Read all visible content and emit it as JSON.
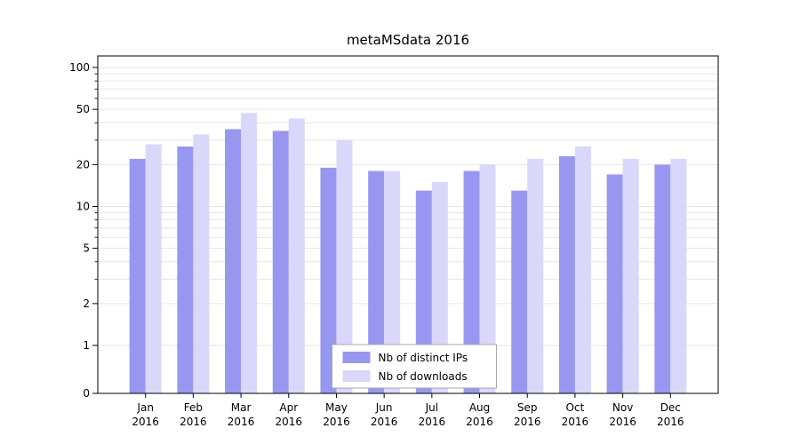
{
  "title": "metaMSdata 2016",
  "chart_data": {
    "type": "bar",
    "title": "metaMSdata 2016",
    "categories": [
      "Jan 2016",
      "Feb 2016",
      "Mar 2016",
      "Apr 2016",
      "May 2016",
      "Jun 2016",
      "Jul 2016",
      "Aug 2016",
      "Sep 2016",
      "Oct 2016",
      "Nov 2016",
      "Dec 2016"
    ],
    "series": [
      {
        "name": "Nb of distinct IPs",
        "color": "#9897f0",
        "values": [
          22,
          27,
          36,
          35,
          19,
          18,
          13,
          18,
          13,
          23,
          17,
          20
        ]
      },
      {
        "name": "Nb of downloads",
        "color": "#d9d8fa",
        "values": [
          28,
          33,
          47,
          43,
          30,
          18,
          15,
          20,
          22,
          27,
          22,
          22
        ]
      }
    ],
    "yscale": "symlog",
    "yticks": [
      0,
      1,
      2,
      5,
      10,
      20,
      50,
      100
    ],
    "ylim": [
      0,
      120
    ],
    "grid": true,
    "gridcolor": "#e6e6e6",
    "axis_color": "#000000",
    "legend_position": "lower center",
    "legend_edge_color": "#aaaaaa"
  }
}
